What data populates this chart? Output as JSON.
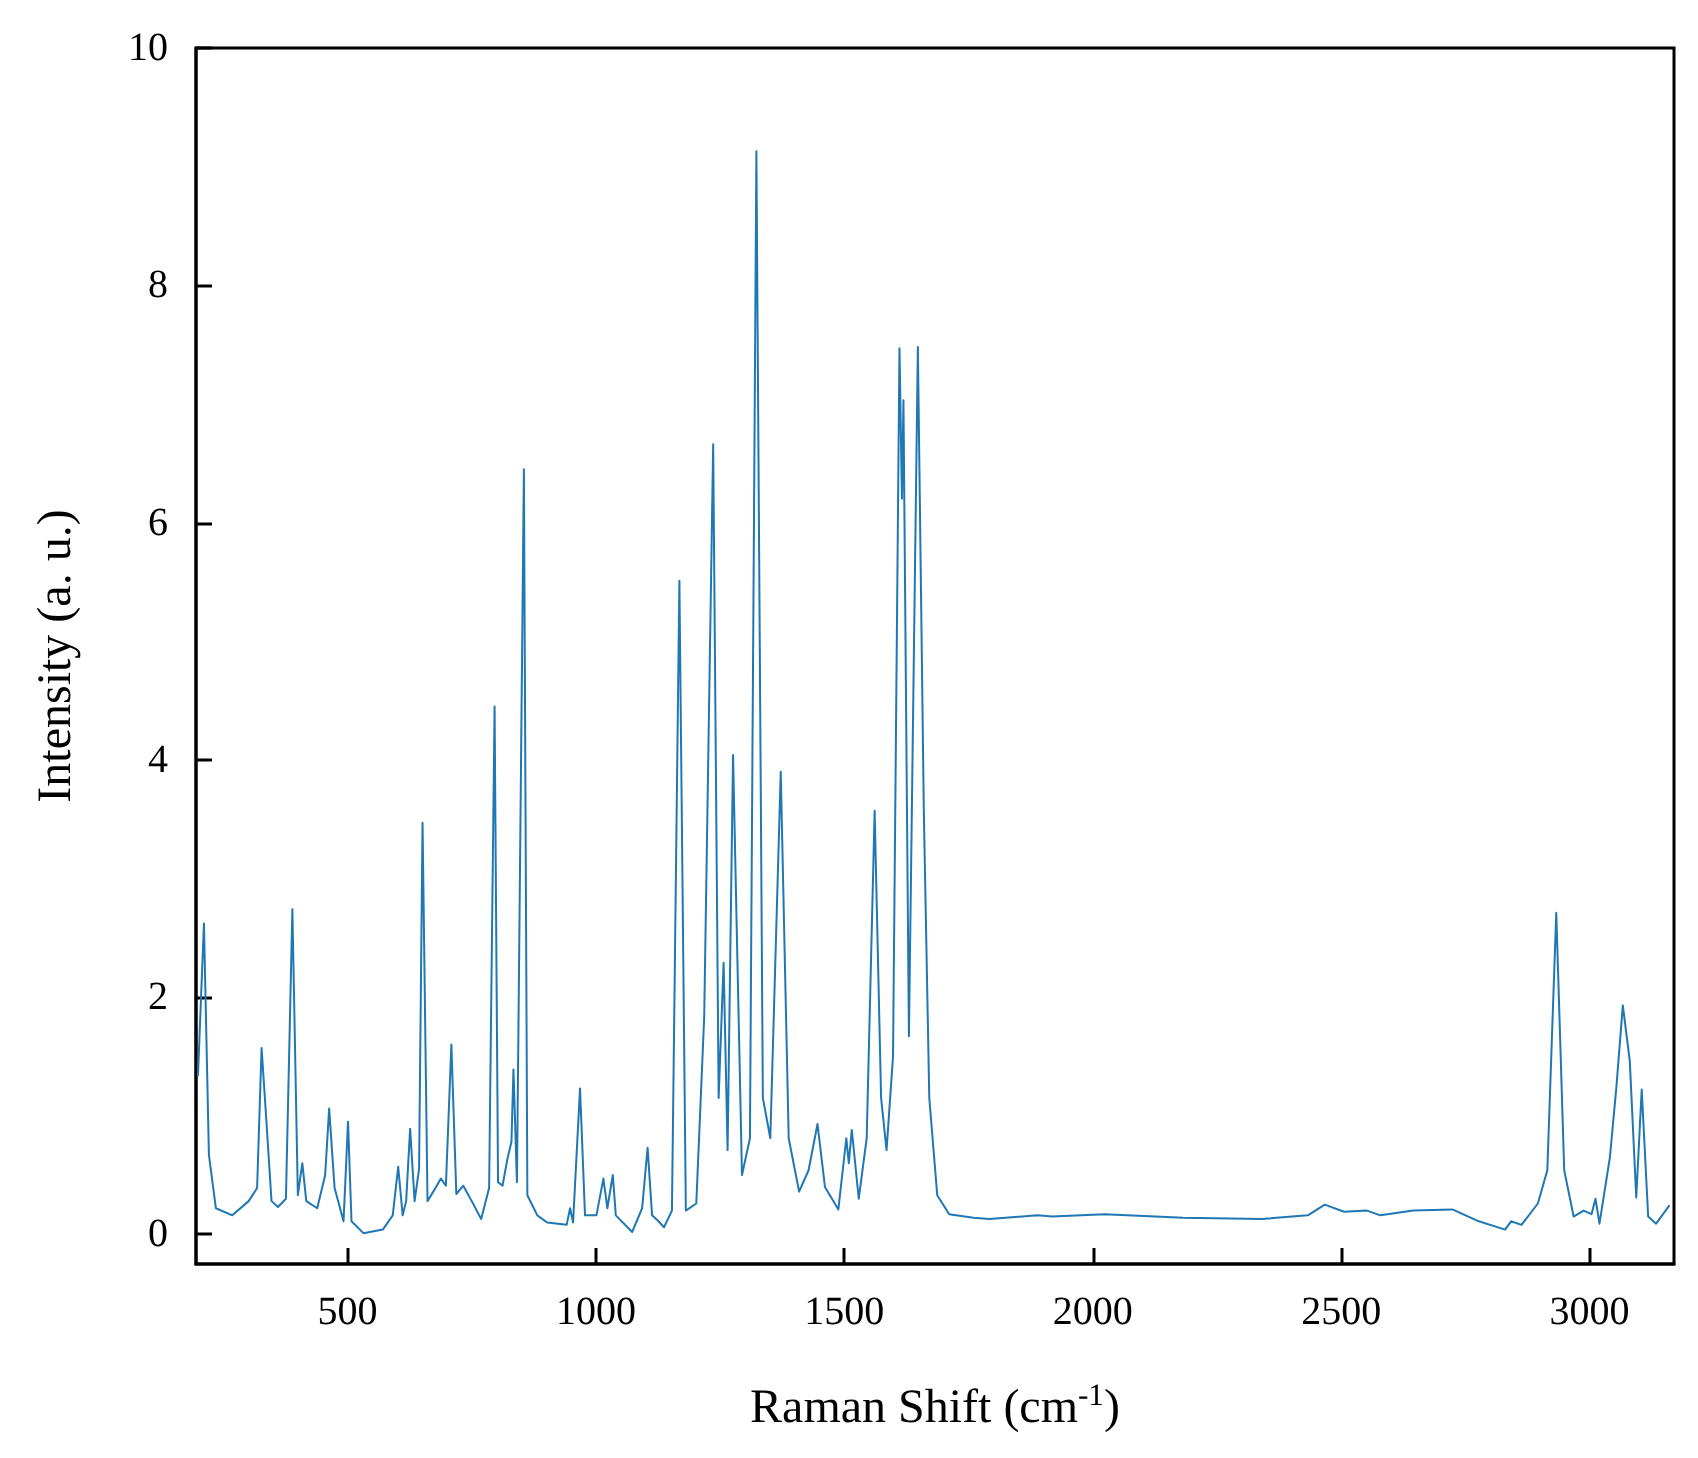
{
  "chart_data": {
    "type": "line",
    "xlabel": "Raman Shift (cm$^{-1}$)",
    "ylabel": "Intensity (a. u.)",
    "xlim": [
      195,
      3170
    ],
    "ylim": [
      -0.25,
      10
    ],
    "xticks": [
      500,
      1000,
      1500,
      2000,
      2500,
      3000
    ],
    "yticks": [
      0,
      2,
      4,
      6,
      8,
      10
    ],
    "grid": false,
    "marker": "none",
    "line_style": "solid",
    "series": [
      {
        "color": "#1f77b4",
        "x": [
          199,
          211,
          221,
          235,
          268,
          301,
          318,
          327,
          336,
          347,
          360,
          376,
          389,
          400,
          409,
          417,
          439,
          455,
          463,
          474,
          492,
          501,
          508,
          532,
          571,
          591,
          602,
          611,
          618,
          626,
          635,
          644,
          651,
          661,
          677,
          688,
          698,
          709,
          719,
          733,
          750,
          769,
          785,
          796,
          803,
          812,
          822,
          830,
          834,
          841,
          855,
          862,
          882,
          902,
          941,
          948,
          954,
          968,
          978,
          1001,
          1015,
          1023,
          1034,
          1040,
          1073,
          1093,
          1104,
          1113,
          1126,
          1137,
          1153,
          1168,
          1181,
          1202,
          1218,
          1236,
          1247,
          1257,
          1265,
          1276,
          1294,
          1310,
          1323,
          1336,
          1351,
          1372,
          1388,
          1409,
          1428,
          1446,
          1461,
          1488,
          1504,
          1509,
          1515,
          1529,
          1545,
          1561,
          1574,
          1585,
          1598,
          1611,
          1616,
          1619,
          1630,
          1648,
          1660,
          1671,
          1687,
          1711,
          1760,
          1792,
          1889,
          1918,
          2024,
          2182,
          2341,
          2433,
          2467,
          2506,
          2552,
          2579,
          2645,
          2724,
          2777,
          2830,
          2842,
          2863,
          2896,
          2915,
          2933,
          2949,
          2968,
          2988,
          3004,
          3012,
          3020,
          3041,
          3054,
          3067,
          3081,
          3094,
          3105,
          3118,
          3134,
          3160
        ],
        "values": [
          1.34,
          2.62,
          0.67,
          0.22,
          0.16,
          0.28,
          0.39,
          1.57,
          1.0,
          0.28,
          0.23,
          0.3,
          2.74,
          0.33,
          0.6,
          0.28,
          0.22,
          0.5,
          1.06,
          0.39,
          0.11,
          0.95,
          0.11,
          0.01,
          0.04,
          0.16,
          0.57,
          0.16,
          0.28,
          0.89,
          0.28,
          0.55,
          3.47,
          0.28,
          0.39,
          0.47,
          0.41,
          1.6,
          0.34,
          0.41,
          0.28,
          0.13,
          0.39,
          4.45,
          0.44,
          0.41,
          0.64,
          0.78,
          1.39,
          0.44,
          6.45,
          0.33,
          0.16,
          0.1,
          0.08,
          0.22,
          0.1,
          1.23,
          0.16,
          0.16,
          0.47,
          0.22,
          0.5,
          0.16,
          0.02,
          0.22,
          0.73,
          0.16,
          0.11,
          0.06,
          0.2,
          5.51,
          0.2,
          0.26,
          1.84,
          6.66,
          1.15,
          2.29,
          0.71,
          4.04,
          0.5,
          0.81,
          9.13,
          1.15,
          0.81,
          3.9,
          0.81,
          0.36,
          0.54,
          0.93,
          0.4,
          0.21,
          0.81,
          0.6,
          0.88,
          0.3,
          0.81,
          3.57,
          1.15,
          0.71,
          1.5,
          7.47,
          6.2,
          7.03,
          1.67,
          7.48,
          3.56,
          1.15,
          0.33,
          0.17,
          0.14,
          0.13,
          0.16,
          0.15,
          0.17,
          0.14,
          0.13,
          0.16,
          0.25,
          0.19,
          0.2,
          0.16,
          0.2,
          0.21,
          0.11,
          0.04,
          0.11,
          0.08,
          0.26,
          0.54,
          2.71,
          0.54,
          0.15,
          0.2,
          0.17,
          0.3,
          0.09,
          0.65,
          1.24,
          1.93,
          1.46,
          0.31,
          1.22,
          0.15,
          0.09,
          0.24
        ]
      }
    ]
  }
}
